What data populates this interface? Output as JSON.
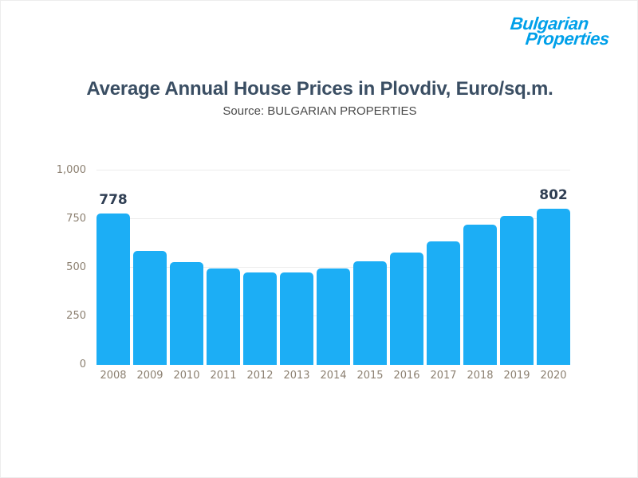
{
  "logo": {
    "line1": "Bulgarian",
    "line2": "Properties"
  },
  "chart_data": {
    "type": "bar",
    "title": "Average Annual House Prices in Plovdiv, Euro/sq.m.",
    "subtitle": "Source: BULGARIAN PROPERTIES",
    "categories": [
      "2008",
      "2009",
      "2010",
      "2011",
      "2012",
      "2013",
      "2014",
      "2015",
      "2016",
      "2017",
      "2018",
      "2019",
      "2020"
    ],
    "values": [
      778,
      587,
      530,
      497,
      477,
      474,
      495,
      533,
      577,
      634,
      723,
      767,
      802
    ],
    "data_labels": [
      "778",
      "",
      "",
      "",
      "",
      "",
      "",
      "",
      "",
      "",
      "",
      "",
      "802"
    ],
    "xlabel": "",
    "ylabel": "",
    "ylim": [
      0,
      1000
    ],
    "yticks": [
      {
        "label": "0",
        "value": 0
      },
      {
        "label": "250",
        "value": 250
      },
      {
        "label": "500",
        "value": 500
      },
      {
        "label": "750",
        "value": 750
      },
      {
        "label": "1,000",
        "value": 1000
      }
    ],
    "gridline_values": [
      250,
      500,
      750,
      1000
    ],
    "grid": "horizontal",
    "legend_position": "none"
  },
  "colors": {
    "bar": "#1CAEF5",
    "title": "#3A4E63",
    "subtitle": "#4B4B4B",
    "axis_labels": "#8C8071",
    "value_labels": "#2F3E53",
    "gridline": "#ECECEC",
    "logo_blue": "#00A0E9",
    "background": "#FFFFFF"
  }
}
